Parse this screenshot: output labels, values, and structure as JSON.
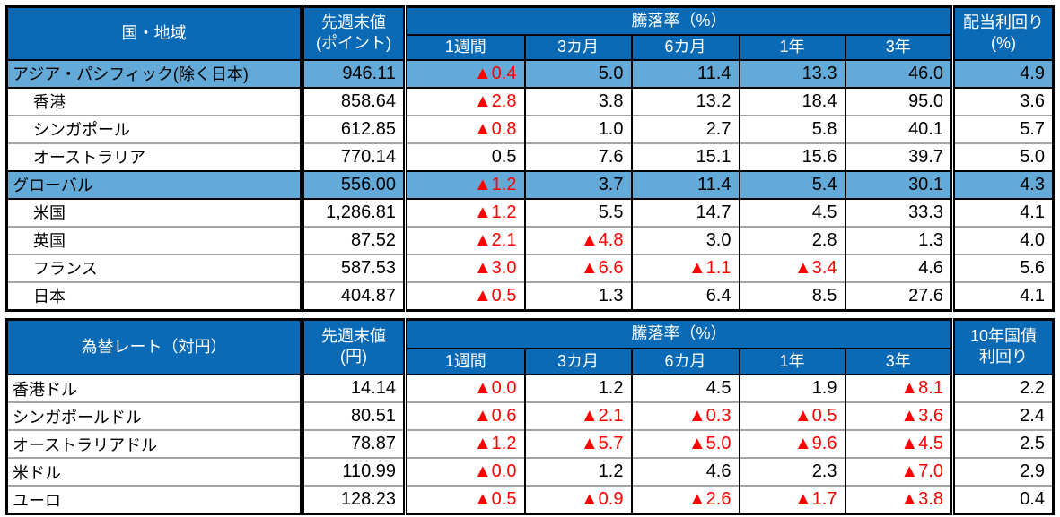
{
  "meta": {
    "negative_marker": "▲",
    "colors": {
      "header_bg": "#0A6AB6",
      "header_text": "#ffffff",
      "highlight_row_bg": "#64AAD9",
      "negative_value": "#FF0000",
      "row_separator": "#A3A3A3",
      "border": "#000000"
    }
  },
  "tables": [
    {
      "corner_header": "国・地域",
      "value_header_line1": "先週末値",
      "value_header_line2": "(ポイント)",
      "group_header": "騰落率（%）",
      "period_headers": [
        "1週間",
        "3カ月",
        "6カ月",
        "1年",
        "3年"
      ],
      "last_header_line1": "配当利回り",
      "last_header_line2": "(%)",
      "rows": [
        {
          "label": "アジア・パシフィック(除く日本)",
          "indent": false,
          "highlight": true,
          "value": "946.11",
          "changes": [
            "▲0.4",
            "5.0",
            "11.4",
            "13.3",
            "46.0"
          ],
          "last": "4.9"
        },
        {
          "label": "香港",
          "indent": true,
          "highlight": false,
          "value": "858.64",
          "changes": [
            "▲2.8",
            "3.8",
            "13.2",
            "18.4",
            "95.0"
          ],
          "last": "3.6"
        },
        {
          "label": "シンガポール",
          "indent": true,
          "highlight": false,
          "value": "612.85",
          "changes": [
            "▲0.8",
            "1.0",
            "2.7",
            "5.8",
            "40.1"
          ],
          "last": "5.7"
        },
        {
          "label": "オーストラリア",
          "indent": true,
          "highlight": false,
          "value": "770.14",
          "changes": [
            "0.5",
            "7.6",
            "15.1",
            "15.6",
            "39.7"
          ],
          "last": "5.0"
        },
        {
          "label": "グローバル",
          "indent": false,
          "highlight": true,
          "value": "556.00",
          "changes": [
            "▲1.2",
            "3.7",
            "11.4",
            "5.4",
            "30.1"
          ],
          "last": "4.3"
        },
        {
          "label": "米国",
          "indent": true,
          "highlight": false,
          "value": "1,286.81",
          "changes": [
            "▲1.2",
            "5.5",
            "14.7",
            "4.5",
            "33.3"
          ],
          "last": "4.1"
        },
        {
          "label": "英国",
          "indent": true,
          "highlight": false,
          "value": "87.52",
          "changes": [
            "▲2.1",
            "▲4.8",
            "3.0",
            "2.8",
            "1.3"
          ],
          "last": "4.0"
        },
        {
          "label": "フランス",
          "indent": true,
          "highlight": false,
          "value": "587.53",
          "changes": [
            "▲3.0",
            "▲6.6",
            "▲1.1",
            "▲3.4",
            "4.6"
          ],
          "last": "5.6"
        },
        {
          "label": "日本",
          "indent": true,
          "highlight": false,
          "value": "404.87",
          "changes": [
            "▲0.5",
            "1.3",
            "6.4",
            "8.5",
            "27.6"
          ],
          "last": "4.1"
        }
      ]
    },
    {
      "corner_header": "為替レート（対円）",
      "value_header_line1": "先週末値",
      "value_header_line2": "(円)",
      "group_header": "騰落率（%）",
      "period_headers": [
        "1週間",
        "3カ月",
        "6カ月",
        "1年",
        "3年"
      ],
      "last_header_line1": "10年国債",
      "last_header_line2": "利回り",
      "rows": [
        {
          "label": "香港ドル",
          "indent": false,
          "highlight": false,
          "value": "14.14",
          "changes": [
            "▲0.0",
            "1.2",
            "4.5",
            "1.9",
            "▲8.1"
          ],
          "last": "2.2"
        },
        {
          "label": "シンガポールドル",
          "indent": false,
          "highlight": false,
          "value": "80.51",
          "changes": [
            "▲0.6",
            "▲2.1",
            "▲0.3",
            "▲0.5",
            "▲3.6"
          ],
          "last": "2.4"
        },
        {
          "label": "オーストラリアドル",
          "indent": false,
          "highlight": false,
          "value": "78.87",
          "changes": [
            "▲1.2",
            "▲5.7",
            "▲5.0",
            "▲9.6",
            "▲4.5"
          ],
          "last": "2.5"
        },
        {
          "label": "米ドル",
          "indent": false,
          "highlight": false,
          "value": "110.99",
          "changes": [
            "▲0.0",
            "1.2",
            "4.6",
            "2.3",
            "▲7.0"
          ],
          "last": "2.9"
        },
        {
          "label": "ユーロ",
          "indent": false,
          "highlight": false,
          "value": "128.23",
          "changes": [
            "▲0.5",
            "▲0.9",
            "▲2.6",
            "▲1.7",
            "▲3.8"
          ],
          "last": "0.4"
        }
      ]
    }
  ]
}
